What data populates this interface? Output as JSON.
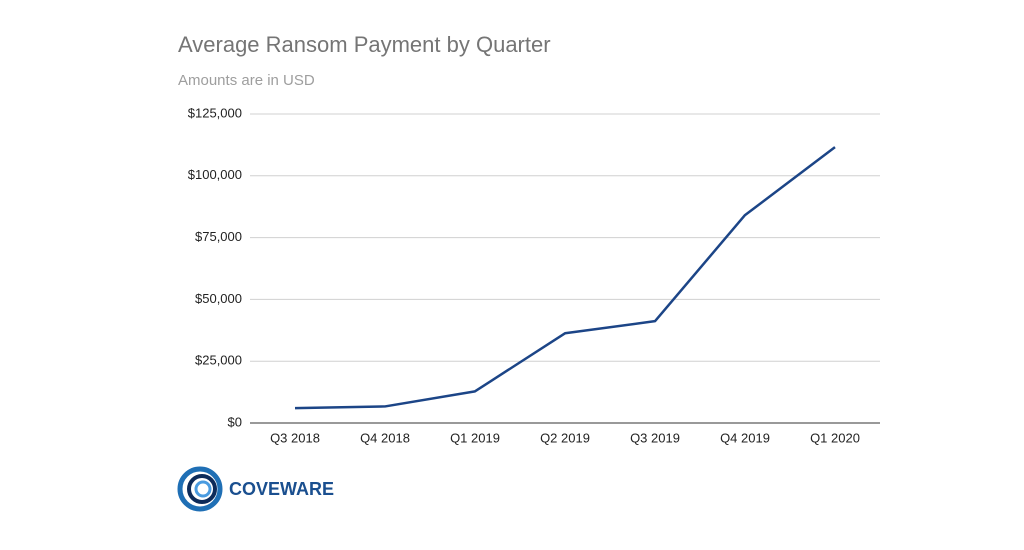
{
  "chart_data": {
    "type": "line",
    "title": "Average Ransom Payment by Quarter",
    "subtitle": "Amounts are in USD",
    "categories": [
      "Q3 2018",
      "Q4 2018",
      "Q1 2019",
      "Q2 2019",
      "Q3 2019",
      "Q4 2019",
      "Q1 2020"
    ],
    "series": [
      {
        "name": "Average Ransom Payment",
        "color": "#1c4587",
        "values": [
          6000,
          6700,
          12800,
          36300,
          41200,
          84100,
          111600
        ]
      }
    ],
    "ylim": [
      0,
      125000
    ],
    "yticks": [
      {
        "value": 0,
        "label": "$0"
      },
      {
        "value": 25000,
        "label": "$25,000"
      },
      {
        "value": 50000,
        "label": "$50,000"
      },
      {
        "value": 75000,
        "label": "$75,000"
      },
      {
        "value": 100000,
        "label": "$100,000"
      },
      {
        "value": 125000,
        "label": "$125,000"
      }
    ],
    "grid": true
  },
  "logo": {
    "text": "COVEWARE"
  }
}
